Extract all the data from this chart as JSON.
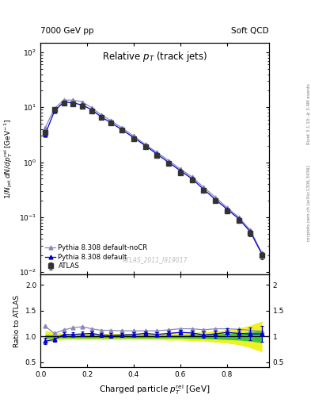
{
  "title_left": "7000 GeV pp",
  "title_right": "Soft QCD",
  "plot_title": "Relative p_{T} (track jets)",
  "xlabel": "Charged particle p_{T}^{rel} [GeV]",
  "ylabel_main": "1/N_{jet} dN/dp_{T}^{rel} [GeV^{-1}]",
  "ylabel_ratio": "Ratio to ATLAS",
  "right_label_top": "Rivet 3.1.10; ≥ 3.4M events",
  "right_label_bot": "mcplots.cern.ch [arXiv:1306.3436]",
  "watermark": "ATLAS_2011_I919017",
  "atlas_x": [
    0.02,
    0.06,
    0.1,
    0.14,
    0.18,
    0.22,
    0.26,
    0.3,
    0.35,
    0.4,
    0.45,
    0.5,
    0.55,
    0.6,
    0.65,
    0.7,
    0.75,
    0.8,
    0.85,
    0.9,
    0.95
  ],
  "atlas_y": [
    3.5,
    9.0,
    12.0,
    11.5,
    10.5,
    8.5,
    6.5,
    5.2,
    3.8,
    2.7,
    1.9,
    1.35,
    0.95,
    0.65,
    0.47,
    0.31,
    0.2,
    0.13,
    0.088,
    0.052,
    0.02
  ],
  "atlas_yerr": [
    0.35,
    0.45,
    0.55,
    0.5,
    0.48,
    0.38,
    0.28,
    0.24,
    0.17,
    0.12,
    0.09,
    0.065,
    0.048,
    0.038,
    0.028,
    0.02,
    0.014,
    0.011,
    0.008,
    0.007,
    0.003
  ],
  "pythia_def_x": [
    0.02,
    0.06,
    0.1,
    0.14,
    0.18,
    0.22,
    0.26,
    0.3,
    0.35,
    0.4,
    0.45,
    0.5,
    0.55,
    0.6,
    0.65,
    0.7,
    0.75,
    0.8,
    0.85,
    0.9,
    0.95
  ],
  "pythia_def_y": [
    3.2,
    8.5,
    12.5,
    12.0,
    11.0,
    9.0,
    6.7,
    5.3,
    3.9,
    2.8,
    2.0,
    1.4,
    0.99,
    0.7,
    0.5,
    0.32,
    0.21,
    0.14,
    0.094,
    0.054,
    0.021
  ],
  "pythia_nocr_x": [
    0.02,
    0.06,
    0.1,
    0.14,
    0.18,
    0.22,
    0.26,
    0.3,
    0.35,
    0.4,
    0.45,
    0.5,
    0.55,
    0.6,
    0.65,
    0.7,
    0.75,
    0.8,
    0.85,
    0.9,
    0.95
  ],
  "pythia_nocr_y": [
    4.2,
    9.5,
    13.5,
    13.5,
    12.5,
    9.8,
    7.3,
    5.8,
    4.2,
    3.0,
    2.1,
    1.5,
    1.07,
    0.75,
    0.54,
    0.35,
    0.23,
    0.15,
    0.1,
    0.058,
    0.022
  ],
  "ratio_def_y": [
    0.91,
    0.94,
    1.04,
    1.04,
    1.05,
    1.06,
    1.03,
    1.02,
    1.03,
    1.04,
    1.06,
    1.04,
    1.06,
    1.08,
    1.07,
    1.03,
    1.05,
    1.08,
    1.06,
    1.05,
    1.05
  ],
  "ratio_def_yerr": [
    0.06,
    0.04,
    0.04,
    0.04,
    0.04,
    0.04,
    0.04,
    0.04,
    0.04,
    0.04,
    0.04,
    0.04,
    0.05,
    0.05,
    0.05,
    0.06,
    0.07,
    0.08,
    0.09,
    0.12,
    0.15
  ],
  "ratio_nocr_y": [
    1.2,
    1.06,
    1.13,
    1.17,
    1.19,
    1.15,
    1.12,
    1.12,
    1.11,
    1.11,
    1.11,
    1.11,
    1.13,
    1.15,
    1.15,
    1.13,
    1.15,
    1.15,
    1.14,
    1.12,
    1.1
  ],
  "green_band_center": [
    1.0,
    1.0,
    1.0,
    1.0,
    1.0,
    1.0,
    1.0,
    1.0,
    1.0,
    1.0,
    1.0,
    1.0,
    1.0,
    1.0,
    1.0,
    1.0,
    1.0,
    1.0,
    1.0,
    1.0,
    1.0
  ],
  "green_band_half": [
    0.04,
    0.03,
    0.03,
    0.03,
    0.03,
    0.03,
    0.03,
    0.03,
    0.03,
    0.03,
    0.03,
    0.03,
    0.03,
    0.03,
    0.04,
    0.04,
    0.05,
    0.06,
    0.07,
    0.09,
    0.12
  ],
  "yellow_band_half": [
    0.12,
    0.08,
    0.06,
    0.06,
    0.06,
    0.06,
    0.06,
    0.06,
    0.06,
    0.06,
    0.06,
    0.06,
    0.07,
    0.07,
    0.08,
    0.09,
    0.11,
    0.13,
    0.16,
    0.22,
    0.3
  ],
  "color_atlas": "#333333",
  "color_pythia_def": "#0000cc",
  "color_pythia_nocr": "#8888bb",
  "color_green": "#00bb44",
  "color_yellow": "#eeee00",
  "ylim_main": [
    0.009,
    150
  ],
  "ylim_ratio": [
    0.4,
    2.2
  ],
  "xlim": [
    0.0,
    0.98
  ]
}
